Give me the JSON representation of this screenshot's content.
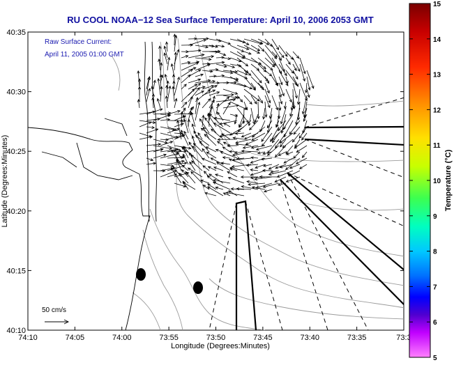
{
  "title": "RU COOL  NOAA−12  Sea Surface Temperature:  April 10, 2006 2053 GMT",
  "legend": {
    "line1": "Raw Surface Current:",
    "line2": "April 11, 2005 01:00 GMT"
  },
  "scale": {
    "label": "50 cm/s"
  },
  "axes": {
    "xlabel": "Longitude (Degrees:Minutes)",
    "ylabel": "Latitude (Degrees:Minutes)",
    "xticks": [
      "74:10",
      "74:05",
      "74:00",
      "73:55",
      "73:50",
      "73:45",
      "73:40",
      "73:35",
      "73:3"
    ],
    "yticks": [
      "40:35",
      "40:30",
      "40:25",
      "40:20",
      "40:15",
      "40:10"
    ]
  },
  "colorbar": {
    "label": "Temperature (°C)",
    "ticks": [
      "15",
      "14",
      "13",
      "12",
      "11",
      "10",
      "9",
      "8",
      "7",
      "6",
      "5"
    ],
    "min": 5,
    "max": 15
  },
  "colors": {
    "title": "#1010a0",
    "legend": "#1a1ab0",
    "axis": "#000000",
    "contour": "#9a9a9a"
  }
}
